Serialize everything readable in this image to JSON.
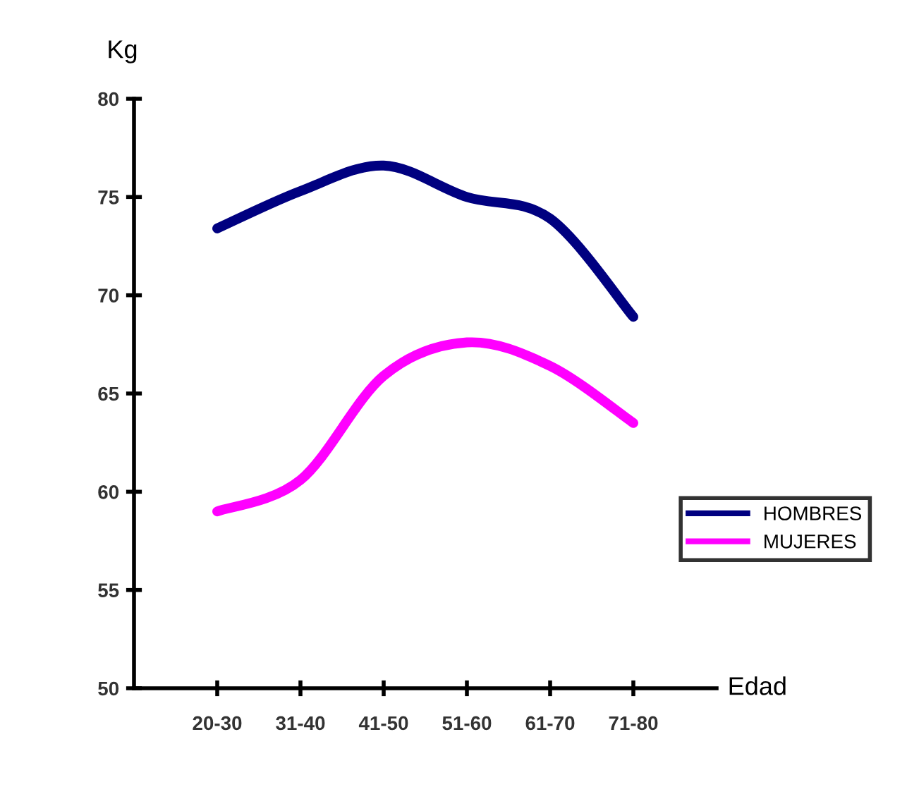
{
  "chart_data": {
    "type": "line",
    "xlabel": "Edad",
    "ylabel": "Kg",
    "categories": [
      "20-30",
      "31-40",
      "41-50",
      "51-60",
      "61-70",
      "71-80"
    ],
    "series": [
      {
        "name": "HOMBRES",
        "color": "#000080",
        "values": [
          73.4,
          75.3,
          76.6,
          75.0,
          73.9,
          68.9
        ]
      },
      {
        "name": "MUJERES",
        "color": "#ff00ff",
        "values": [
          59.0,
          60.6,
          65.9,
          67.6,
          66.4,
          63.5
        ]
      }
    ],
    "ylim": [
      50,
      80
    ],
    "yticks": [
      50,
      55,
      60,
      65,
      70,
      75,
      80
    ],
    "grid": false,
    "legend": "right",
    "marker": "none",
    "line_style": "solid"
  }
}
